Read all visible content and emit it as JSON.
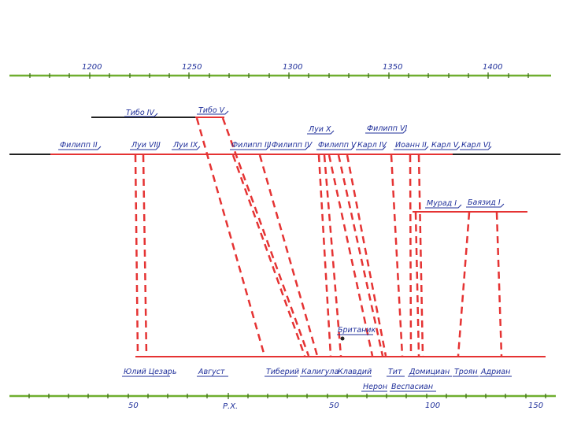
{
  "top_scale": {
    "color": "#6fae2f",
    "labels": [
      {
        "id": "y1200",
        "text": "1200"
      },
      {
        "id": "y1250",
        "text": "1250"
      },
      {
        "id": "y1300",
        "text": "1300"
      },
      {
        "id": "y1350",
        "text": "1350"
      },
      {
        "id": "y1400",
        "text": "1400"
      }
    ]
  },
  "bottom_scale": {
    "color": "#6fae2f",
    "labels": [
      {
        "id": "b50a",
        "text": "50"
      },
      {
        "id": "era",
        "text": "Р.Х."
      },
      {
        "id": "b50b",
        "text": "50"
      },
      {
        "id": "b100",
        "text": "100"
      },
      {
        "id": "b150",
        "text": "150"
      }
    ]
  },
  "upper_rulers": [
    {
      "id": "tibo-iv",
      "text": "Тибо IV"
    },
    {
      "id": "tibo-v",
      "text": "Тибо V"
    },
    {
      "id": "filipp-ii",
      "text": "Филипп II"
    },
    {
      "id": "lui-viii",
      "text": "Луи VIII"
    },
    {
      "id": "lui-ix",
      "text": "Луи IX"
    },
    {
      "id": "filipp-iii",
      "text": "Филипп III"
    },
    {
      "id": "filipp-iv",
      "text": "Филипп IV"
    },
    {
      "id": "lui-x",
      "text": "Луи X"
    },
    {
      "id": "filipp-v",
      "text": "Филипп V"
    },
    {
      "id": "karl-iv",
      "text": "Карл IV"
    },
    {
      "id": "filipp-vi",
      "text": "Филипп VI"
    },
    {
      "id": "ioann-ii",
      "text": "Иоанн II"
    },
    {
      "id": "karl-v",
      "text": "Карл V"
    },
    {
      "id": "karl-vi",
      "text": "Карл VI"
    },
    {
      "id": "murad-i",
      "text": "Мурад I"
    },
    {
      "id": "bayazid-i",
      "text": "Баязид I"
    }
  ],
  "lower_rulers": [
    {
      "id": "yuliy",
      "text": "Юлий Цезарь"
    },
    {
      "id": "avgust",
      "text": "Август"
    },
    {
      "id": "tiberiy",
      "text": "Тиберий"
    },
    {
      "id": "kaligula",
      "text": "Калигула"
    },
    {
      "id": "klavdiy",
      "text": "Клавдий"
    },
    {
      "id": "britanik",
      "text": "Британик"
    },
    {
      "id": "neron",
      "text": "Нерон"
    },
    {
      "id": "tit",
      "text": "Тит"
    },
    {
      "id": "vespasian",
      "text": "Веспасиан"
    },
    {
      "id": "domitsian",
      "text": "Домициан"
    },
    {
      "id": "troyan",
      "text": "Троян"
    },
    {
      "id": "adrian",
      "text": "Адриан"
    }
  ],
  "colors": {
    "timeline_red": "#e53333",
    "ink_blue": "#1f2f9a",
    "black_line": "#222222",
    "scale_green": "#6fae2f"
  }
}
